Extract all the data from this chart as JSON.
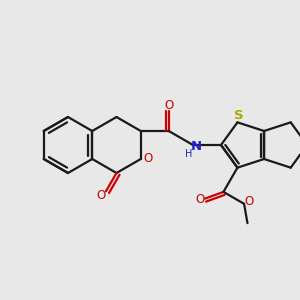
{
  "background_color": "#e8e8e8",
  "line_color": "#1a1a1a",
  "bond_lw": 1.6,
  "font_size": 8.5,
  "fig_size": [
    3.0,
    3.0
  ],
  "dpi": 100,
  "O_col": "#cc0000",
  "N_col": "#2222cc",
  "S_col": "#aaaa00",
  "xlim": [
    0,
    300
  ],
  "ylim": [
    0,
    300
  ]
}
